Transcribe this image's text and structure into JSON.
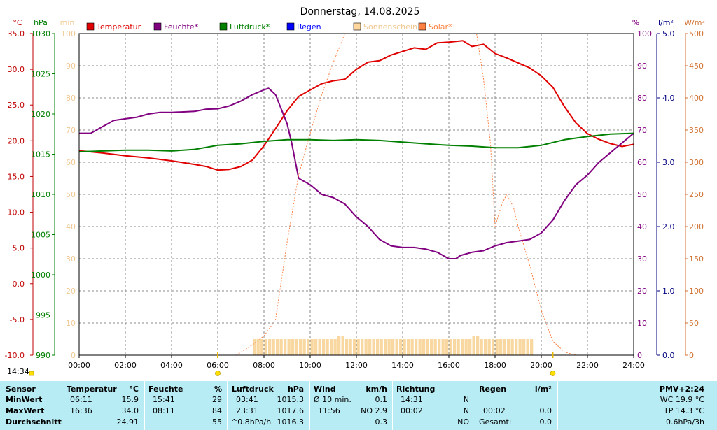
{
  "title": "Donnerstag, 14.08.2025",
  "clock": "14:34",
  "axes": {
    "units": {
      "temp": "°C",
      "press": "hPa",
      "sun": "min",
      "hum": "%",
      "rain": "l/m²",
      "solar": "W/m²"
    },
    "temp_ticks": [
      "35.0",
      "30.0",
      "25.0",
      "20.0",
      "15.0",
      "10.0",
      "5.0",
      "0.0",
      "-5.0",
      "-10.0"
    ],
    "press_ticks": [
      "1030",
      "1025",
      "1020",
      "1015",
      "1010",
      "1005",
      "1000",
      "995",
      "990"
    ],
    "sun_ticks": [
      "100",
      "90",
      "80",
      "70",
      "60",
      "50",
      "40",
      "30",
      "20",
      "10",
      "0"
    ],
    "hum_ticks": [
      "100",
      "90",
      "80",
      "70",
      "60",
      "50",
      "40",
      "30",
      "20",
      "10",
      "0"
    ],
    "rain_ticks": [
      "5.0",
      "4.0",
      "3.0",
      "2.0",
      "1.0",
      "0.0"
    ],
    "solar_ticks": [
      "500",
      "450",
      "400",
      "350",
      "300",
      "250",
      "200",
      "150",
      "100",
      "50",
      "0"
    ],
    "x_ticks": [
      "00:00",
      "02:00",
      "04:00",
      "06:00",
      "08:00",
      "10:00",
      "12:00",
      "14:00",
      "16:00",
      "18:00",
      "20:00",
      "22:00",
      "24:00"
    ]
  },
  "legend": [
    {
      "label": "Temperatur",
      "color": "#e00000"
    },
    {
      "label": "Feuchte*",
      "color": "#800080"
    },
    {
      "label": "Luftdruck*",
      "color": "#008000"
    },
    {
      "label": "Regen",
      "color": "#0000ff"
    },
    {
      "label": "Sonnenschein",
      "color": "#ffd79c"
    },
    {
      "label": "Solar*",
      "color": "#ff8040"
    }
  ],
  "colors": {
    "temp": "#e00000",
    "hum": "#800080",
    "press": "#008000",
    "rain": "#0000ff",
    "sun": "#f8d8a0",
    "solar": "#ff8040",
    "temp_axis": "#c00000",
    "press_axis": "#008000",
    "sun_axis": "#f0c890",
    "hum_axis": "#800080",
    "rain_axis": "#000080",
    "solar_axis": "#d07030",
    "stats_bg": "#b8ecf4"
  },
  "chart_data": {
    "type": "line",
    "x_unit": "hours",
    "xlim": [
      0,
      24
    ],
    "ylim_temp": [
      -10,
      35
    ],
    "ylim_press": [
      990,
      1030
    ],
    "ylim_hum": [
      0,
      100
    ],
    "ylim_rain": [
      0,
      5
    ],
    "ylim_solar": [
      0,
      500
    ],
    "ylim_sun": [
      0,
      100
    ],
    "grid": true,
    "legend_position": "top",
    "sunrise": 6.0,
    "sunset": 20.5,
    "series": [
      {
        "name": "Temperatur",
        "axis": "temp",
        "points": [
          [
            0,
            18.6
          ],
          [
            1,
            18.3
          ],
          [
            2,
            17.9
          ],
          [
            3,
            17.6
          ],
          [
            4,
            17.2
          ],
          [
            5,
            16.7
          ],
          [
            5.5,
            16.4
          ],
          [
            6.0,
            15.9
          ],
          [
            6.5,
            16.0
          ],
          [
            7.0,
            16.4
          ],
          [
            7.5,
            17.3
          ],
          [
            8.0,
            19.3
          ],
          [
            8.5,
            21.7
          ],
          [
            9.0,
            24.2
          ],
          [
            9.5,
            26.2
          ],
          [
            10.0,
            27.1
          ],
          [
            10.5,
            28.0
          ],
          [
            11.0,
            28.4
          ],
          [
            11.5,
            28.6
          ],
          [
            12.0,
            30.0
          ],
          [
            12.5,
            31.0
          ],
          [
            13.0,
            31.2
          ],
          [
            13.5,
            32.0
          ],
          [
            14.0,
            32.5
          ],
          [
            14.5,
            33.0
          ],
          [
            15.0,
            32.8
          ],
          [
            15.5,
            33.7
          ],
          [
            16.0,
            33.8
          ],
          [
            16.6,
            34.0
          ],
          [
            17.0,
            33.2
          ],
          [
            17.5,
            33.5
          ],
          [
            18.0,
            32.2
          ],
          [
            18.5,
            31.6
          ],
          [
            19.0,
            30.9
          ],
          [
            19.5,
            30.2
          ],
          [
            20.0,
            29.1
          ],
          [
            20.5,
            27.5
          ],
          [
            21.0,
            24.8
          ],
          [
            21.5,
            22.5
          ],
          [
            22.0,
            21.0
          ],
          [
            22.5,
            20.2
          ],
          [
            23.0,
            19.6
          ],
          [
            23.5,
            19.2
          ],
          [
            24.0,
            19.5
          ]
        ]
      },
      {
        "name": "Feuchte*",
        "axis": "hum",
        "points": [
          [
            0,
            69
          ],
          [
            0.5,
            69
          ],
          [
            1,
            71
          ],
          [
            1.5,
            73
          ],
          [
            2,
            73.5
          ],
          [
            2.5,
            74
          ],
          [
            3,
            75
          ],
          [
            3.5,
            75.5
          ],
          [
            4,
            75.5
          ],
          [
            5,
            75.8
          ],
          [
            5.5,
            76.5
          ],
          [
            6,
            76.6
          ],
          [
            6.5,
            77.5
          ],
          [
            7,
            79
          ],
          [
            7.5,
            81
          ],
          [
            8.0,
            82.5
          ],
          [
            8.2,
            83
          ],
          [
            8.5,
            81
          ],
          [
            9.0,
            72
          ],
          [
            9.2,
            66
          ],
          [
            9.5,
            55
          ],
          [
            10,
            53
          ],
          [
            10.5,
            50
          ],
          [
            11,
            49
          ],
          [
            11.5,
            47
          ],
          [
            12,
            43
          ],
          [
            12.5,
            40
          ],
          [
            13,
            36
          ],
          [
            13.5,
            34
          ],
          [
            14,
            33.5
          ],
          [
            14.5,
            33.5
          ],
          [
            15,
            33
          ],
          [
            15.5,
            32
          ],
          [
            16,
            30
          ],
          [
            16.3,
            30
          ],
          [
            16.5,
            31
          ],
          [
            17,
            32
          ],
          [
            17.5,
            32.5
          ],
          [
            18,
            34
          ],
          [
            18.5,
            35
          ],
          [
            19,
            35.5
          ],
          [
            19.5,
            36
          ],
          [
            20,
            38
          ],
          [
            20.5,
            42
          ],
          [
            21,
            48
          ],
          [
            21.5,
            53
          ],
          [
            22,
            56
          ],
          [
            22.5,
            60
          ],
          [
            23,
            63
          ],
          [
            23.5,
            66
          ],
          [
            24,
            69
          ]
        ]
      },
      {
        "name": "Luftdruck*",
        "axis": "press",
        "points": [
          [
            0,
            1015.3
          ],
          [
            1,
            1015.4
          ],
          [
            2,
            1015.5
          ],
          [
            3,
            1015.5
          ],
          [
            4,
            1015.4
          ],
          [
            5,
            1015.6
          ],
          [
            6,
            1016.1
          ],
          [
            7,
            1016.3
          ],
          [
            8,
            1016.6
          ],
          [
            9,
            1016.8
          ],
          [
            10,
            1016.8
          ],
          [
            11,
            1016.7
          ],
          [
            12,
            1016.8
          ],
          [
            13,
            1016.7
          ],
          [
            14,
            1016.5
          ],
          [
            15,
            1016.3
          ],
          [
            16,
            1016.1
          ],
          [
            17,
            1016.0
          ],
          [
            18,
            1015.8
          ],
          [
            19,
            1015.8
          ],
          [
            20,
            1016.1
          ],
          [
            21,
            1016.8
          ],
          [
            22,
            1017.2
          ],
          [
            23,
            1017.5
          ],
          [
            24,
            1017.6
          ]
        ]
      },
      {
        "name": "Solar*",
        "axis": "solar",
        "points": [
          [
            6.8,
            0
          ],
          [
            7.5,
            16
          ],
          [
            8.0,
            30
          ],
          [
            8.5,
            55
          ],
          [
            9.0,
            175
          ],
          [
            9.5,
            280
          ],
          [
            10,
            345
          ],
          [
            10.5,
            405
          ],
          [
            11.0,
            455
          ],
          [
            11.5,
            500
          ],
          [
            17.2,
            500
          ],
          [
            17.5,
            430
          ],
          [
            17.8,
            330
          ],
          [
            18.0,
            200
          ],
          [
            18.3,
            235
          ],
          [
            18.5,
            250
          ],
          [
            18.8,
            230
          ],
          [
            19.0,
            200
          ],
          [
            19.5,
            140
          ],
          [
            20.0,
            70
          ],
          [
            20.5,
            22
          ],
          [
            21.0,
            5
          ],
          [
            21.5,
            0
          ]
        ]
      }
    ],
    "sunshine_bars": {
      "axis": "sun",
      "start": 7.5,
      "end": 19.5,
      "value": 5,
      "peaks": [
        [
          11.2,
          6
        ],
        [
          17.0,
          6
        ]
      ]
    },
    "rain_total": 0.0
  },
  "stats": {
    "headers": {
      "sensor": "Sensor",
      "temp": "Temperatur",
      "temp_unit": "°C",
      "hum": "Feuchte",
      "hum_unit": "%",
      "press": "Luftdruck",
      "press_unit": "hPa",
      "wind": "Wind",
      "wind_unit": "km/h",
      "dir": "Richtung",
      "rain": "Regen",
      "rain_unit": "l/m²",
      "pmv": "PMV+2:24"
    },
    "rows": [
      {
        "label": "MinWert",
        "temp_time": "06:11",
        "temp": "15.9",
        "hum_time": "15:41",
        "hum": "29",
        "press_time": "03:41",
        "press": "1015.3",
        "wind_label": "Ø 10 min.",
        "wind": "0.1",
        "dir_time": "14:31",
        "dir": "N",
        "rain_time": "",
        "rain": "",
        "extra": "WC 19.9 °C"
      },
      {
        "label": "MaxWert",
        "temp_time": "16:36",
        "temp": "34.0",
        "hum_time": "08:11",
        "hum": "84",
        "press_time": "23:31",
        "press": "1017.6",
        "wind_label": "11:56",
        "wind": "NO 2.9",
        "dir_time": "00:02",
        "dir": "N",
        "rain_time": "00:02",
        "rain": "0.0",
        "extra": "TP 14.3 °C"
      },
      {
        "label": "Durchschnitt",
        "temp_time": "",
        "temp": "24.91",
        "hum_time": "",
        "hum": "55",
        "press_time": "^0.8hPa/h",
        "press": "1016.3",
        "wind_label": "",
        "wind": "0.3",
        "dir_time": "",
        "dir": "NO",
        "rain_time": "Gesamt:",
        "rain": "0.0",
        "extra": "0.6hPa/3h"
      }
    ]
  }
}
